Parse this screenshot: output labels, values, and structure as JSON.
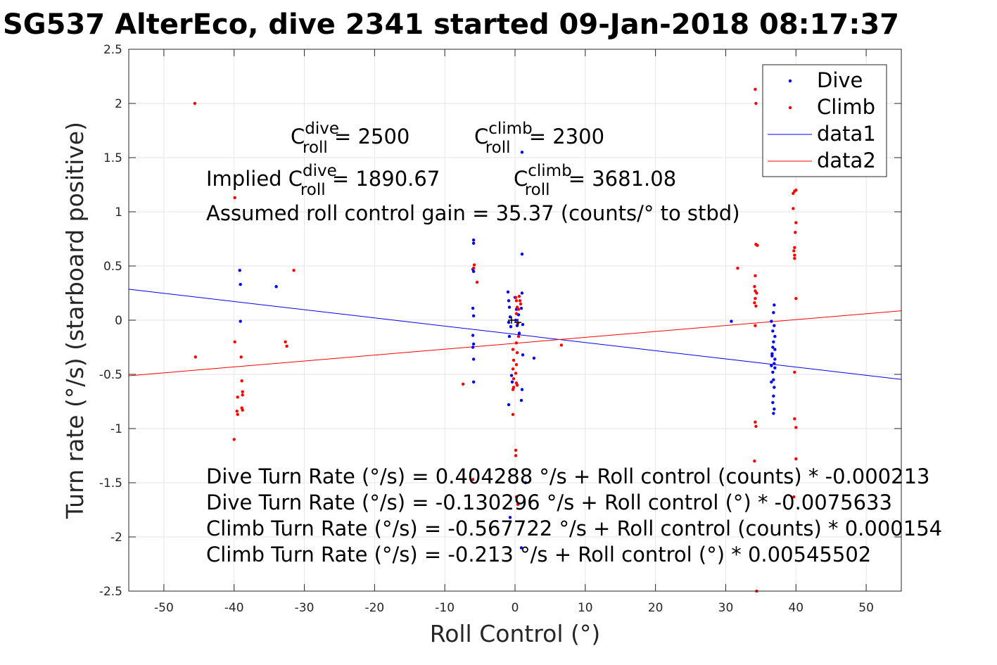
{
  "title": "SG537 AlterEco, dive 2341 started 09-Jan-2018 08:17:37",
  "annotations": {
    "c_dive_base": "C",
    "c_dive_sup": "dive",
    "c_dive_sub": "roll",
    "c_dive_value": " = 2500",
    "c_climb_base": "C",
    "c_climb_sup": "climb",
    "c_climb_sub": "roll",
    "c_climb_value": " = 2300",
    "implied_prefix": "Implied C",
    "implied_dive_sup": "dive",
    "implied_dive_sub": "roll",
    "implied_dive_value": " = 1890.67",
    "implied_climb_base": "C",
    "implied_climb_sup": "climb",
    "implied_climb_sub": "roll",
    "implied_climb_value": " = 3681.08",
    "gain": "Assumed roll control gain = 35.37 (counts/° to stbd)",
    "eq1": "Dive Turn Rate (°/s) = 0.404288 °/s + Roll control (counts) * -0.000213",
    "eq2": "Dive Turn Rate (°/s) = -0.130296 °/s + Roll control (°) * -0.0075633",
    "eq3": "Climb Turn Rate (°/s) = -0.567722 °/s + Roll control (counts) * 0.000154",
    "eq4": "Climb Turn Rate (°/s) = -0.213 °/s + Roll control (°) * 0.00545502"
  },
  "chart_data": {
    "type": "scatter",
    "xlabel": "Roll Control (°)",
    "ylabel": "Turn rate (°/s) (starboard positive)",
    "xlim": [
      -55,
      55
    ],
    "ylim": [
      -2.5,
      2.5
    ],
    "xticks": [
      -50,
      -40,
      -30,
      -20,
      -10,
      0,
      10,
      20,
      30,
      40,
      50
    ],
    "yticks": [
      -2.5,
      -2,
      -1.5,
      -1,
      -0.5,
      0,
      0.5,
      1,
      1.5,
      2,
      2.5
    ],
    "grid": true,
    "legend_position": "top-right",
    "series": [
      {
        "name": "Dive",
        "type": "scatter",
        "color": "#0000ff",
        "points": [
          [
            -39.2,
            0.46
          ],
          [
            -39.1,
            0.33
          ],
          [
            -39.1,
            -0.01
          ],
          [
            -34,
            0.31
          ],
          [
            -5.9,
            0.74
          ],
          [
            -5.9,
            0.71
          ],
          [
            -6.0,
            0.47
          ],
          [
            -5.9,
            0.45
          ],
          [
            -6.0,
            0.11
          ],
          [
            -5.9,
            0.04
          ],
          [
            -6.0,
            -0.14
          ],
          [
            -5.9,
            -0.22
          ],
          [
            -6.0,
            -0.25
          ],
          [
            -5.9,
            -0.36
          ],
          [
            -5.9,
            -0.57
          ],
          [
            -1,
            0.26
          ],
          [
            -0.9,
            0.18
          ],
          [
            -0.8,
            0.12
          ],
          [
            -0.7,
            0.03
          ],
          [
            -0.9,
            -0.02
          ],
          [
            -0.6,
            -0.06
          ],
          [
            -0.8,
            -0.15
          ],
          [
            -0.5,
            -0.51
          ],
          [
            -0.4,
            -0.57
          ],
          [
            -0.9,
            -0.78
          ],
          [
            -0.7,
            -1.82
          ],
          [
            0,
            0.21
          ],
          [
            0.2,
            0.1
          ],
          [
            0.1,
            0.0
          ],
          [
            0.3,
            -0.05
          ],
          [
            0.6,
            -0.12
          ],
          [
            0.5,
            0.05
          ],
          [
            1.0,
            0.61
          ],
          [
            1.0,
            0.25
          ],
          [
            0.9,
            0.11
          ],
          [
            1.1,
            -0.04
          ],
          [
            1.1,
            -0.32
          ],
          [
            1.0,
            -0.64
          ],
          [
            0.9,
            -0.74
          ],
          [
            0.9,
            -2.1
          ],
          [
            1.0,
            1.55
          ],
          [
            1.5,
            -1.5
          ],
          [
            2.7,
            -0.35
          ],
          [
            30.8,
            -0.01
          ],
          [
            36.5,
            -0.01
          ],
          [
            36.7,
            -0.1
          ],
          [
            36.8,
            -0.2
          ],
          [
            36.6,
            -0.31
          ],
          [
            36.9,
            -0.4
          ],
          [
            36.7,
            -0.48
          ],
          [
            36.8,
            -0.55
          ],
          [
            36.5,
            -0.57
          ],
          [
            36.9,
            -0.62
          ],
          [
            36.8,
            -0.7
          ],
          [
            36.7,
            -0.76
          ],
          [
            36.9,
            -0.82
          ],
          [
            36.8,
            -0.86
          ],
          [
            36.9,
            0.14
          ],
          [
            36.8,
            0.07
          ],
          [
            36.9,
            -0.05
          ],
          [
            37.0,
            -0.15
          ],
          [
            37.0,
            -0.27
          ],
          [
            37.0,
            -0.36
          ],
          [
            37.0,
            -0.44
          ],
          [
            36.7,
            -0.25
          ],
          [
            36.6,
            -0.33
          ],
          [
            36.5,
            -0.42
          ]
        ]
      },
      {
        "name": "Climb",
        "type": "scatter",
        "color": "#ff0000",
        "points": [
          [
            -45.6,
            2.0
          ],
          [
            -45.5,
            -0.34
          ],
          [
            -39.9,
            1.13
          ],
          [
            -39.9,
            -0.2
          ],
          [
            -40.0,
            -1.1
          ],
          [
            -39.5,
            -0.71
          ],
          [
            -39.6,
            -0.84
          ],
          [
            -39.5,
            -0.87
          ],
          [
            -39.0,
            -0.34
          ],
          [
            -38.9,
            -0.56
          ],
          [
            -38.8,
            -0.66
          ],
          [
            -38.8,
            -0.69
          ],
          [
            -38.9,
            -0.81
          ],
          [
            -38.8,
            -0.83
          ],
          [
            -32.7,
            -0.2
          ],
          [
            -32.5,
            -0.24
          ],
          [
            -31.5,
            0.46
          ],
          [
            -7.4,
            -0.59
          ],
          [
            -5.8,
            0.51
          ],
          [
            -5.9,
            0.48
          ],
          [
            -5.4,
            0.35
          ],
          [
            -6.0,
            -1.47
          ],
          [
            -0.3,
            -0.27
          ],
          [
            -0.2,
            -0.37
          ],
          [
            -0.3,
            -0.45
          ],
          [
            -0.2,
            -0.54
          ],
          [
            -0.2,
            -0.62
          ],
          [
            -0.3,
            -0.64
          ],
          [
            -0.3,
            -0.87
          ],
          [
            0.1,
            0.21
          ],
          [
            0.2,
            0.18
          ],
          [
            0.3,
            0.12
          ],
          [
            0.2,
            0.06
          ],
          [
            0.4,
            -0.03
          ],
          [
            0.5,
            -0.15
          ],
          [
            0.2,
            -0.21
          ],
          [
            0.3,
            -0.3
          ],
          [
            0.2,
            -0.41
          ],
          [
            0.1,
            -0.49
          ],
          [
            0.2,
            -0.58
          ],
          [
            0.3,
            -0.6
          ],
          [
            0.1,
            -1.2
          ],
          [
            0.1,
            -1.25
          ],
          [
            0.2,
            -1.63
          ],
          [
            0.4,
            -1.7
          ],
          [
            0.6,
            0.22
          ],
          [
            0.7,
            0.18
          ],
          [
            0.8,
            0.15
          ],
          [
            0.5,
            0.1
          ],
          [
            6.6,
            -0.23
          ],
          [
            34.2,
            2.13
          ],
          [
            34.3,
            2.0
          ],
          [
            34.3,
            0.7
          ],
          [
            34.5,
            0.69
          ],
          [
            34.2,
            0.41
          ],
          [
            34.1,
            0.31
          ],
          [
            34.2,
            0.27
          ],
          [
            34.4,
            0.25
          ],
          [
            34.2,
            0.2
          ],
          [
            34.1,
            0.16
          ],
          [
            34.3,
            0.13
          ],
          [
            34.2,
            -0.05
          ],
          [
            34.2,
            -0.94
          ],
          [
            34.3,
            -0.98
          ],
          [
            34.1,
            -1.3
          ],
          [
            34.4,
            -2.5
          ],
          [
            31.7,
            0.48
          ],
          [
            39.6,
            1.17
          ],
          [
            39.8,
            1.19
          ],
          [
            40.0,
            1.2
          ],
          [
            39.6,
            1.03
          ],
          [
            40.0,
            0.9
          ],
          [
            39.9,
            0.81
          ],
          [
            39.8,
            0.67
          ],
          [
            39.7,
            0.64
          ],
          [
            39.8,
            0.6
          ],
          [
            39.8,
            0.57
          ],
          [
            40.0,
            0.2
          ],
          [
            39.8,
            -0.48
          ],
          [
            39.8,
            -0.91
          ],
          [
            40.0,
            -0.99
          ],
          [
            40.0,
            -1.28
          ],
          [
            39.7,
            -1.63
          ]
        ]
      },
      {
        "name": "data1",
        "type": "line",
        "color": "#0000ff",
        "x": [
          -55,
          55
        ],
        "y": [
          0.2857,
          -0.5463
        ]
      },
      {
        "name": "data2",
        "type": "line",
        "color": "#ff0000",
        "x": [
          -55,
          55
        ],
        "y": [
          -0.513,
          0.087
        ]
      }
    ]
  }
}
